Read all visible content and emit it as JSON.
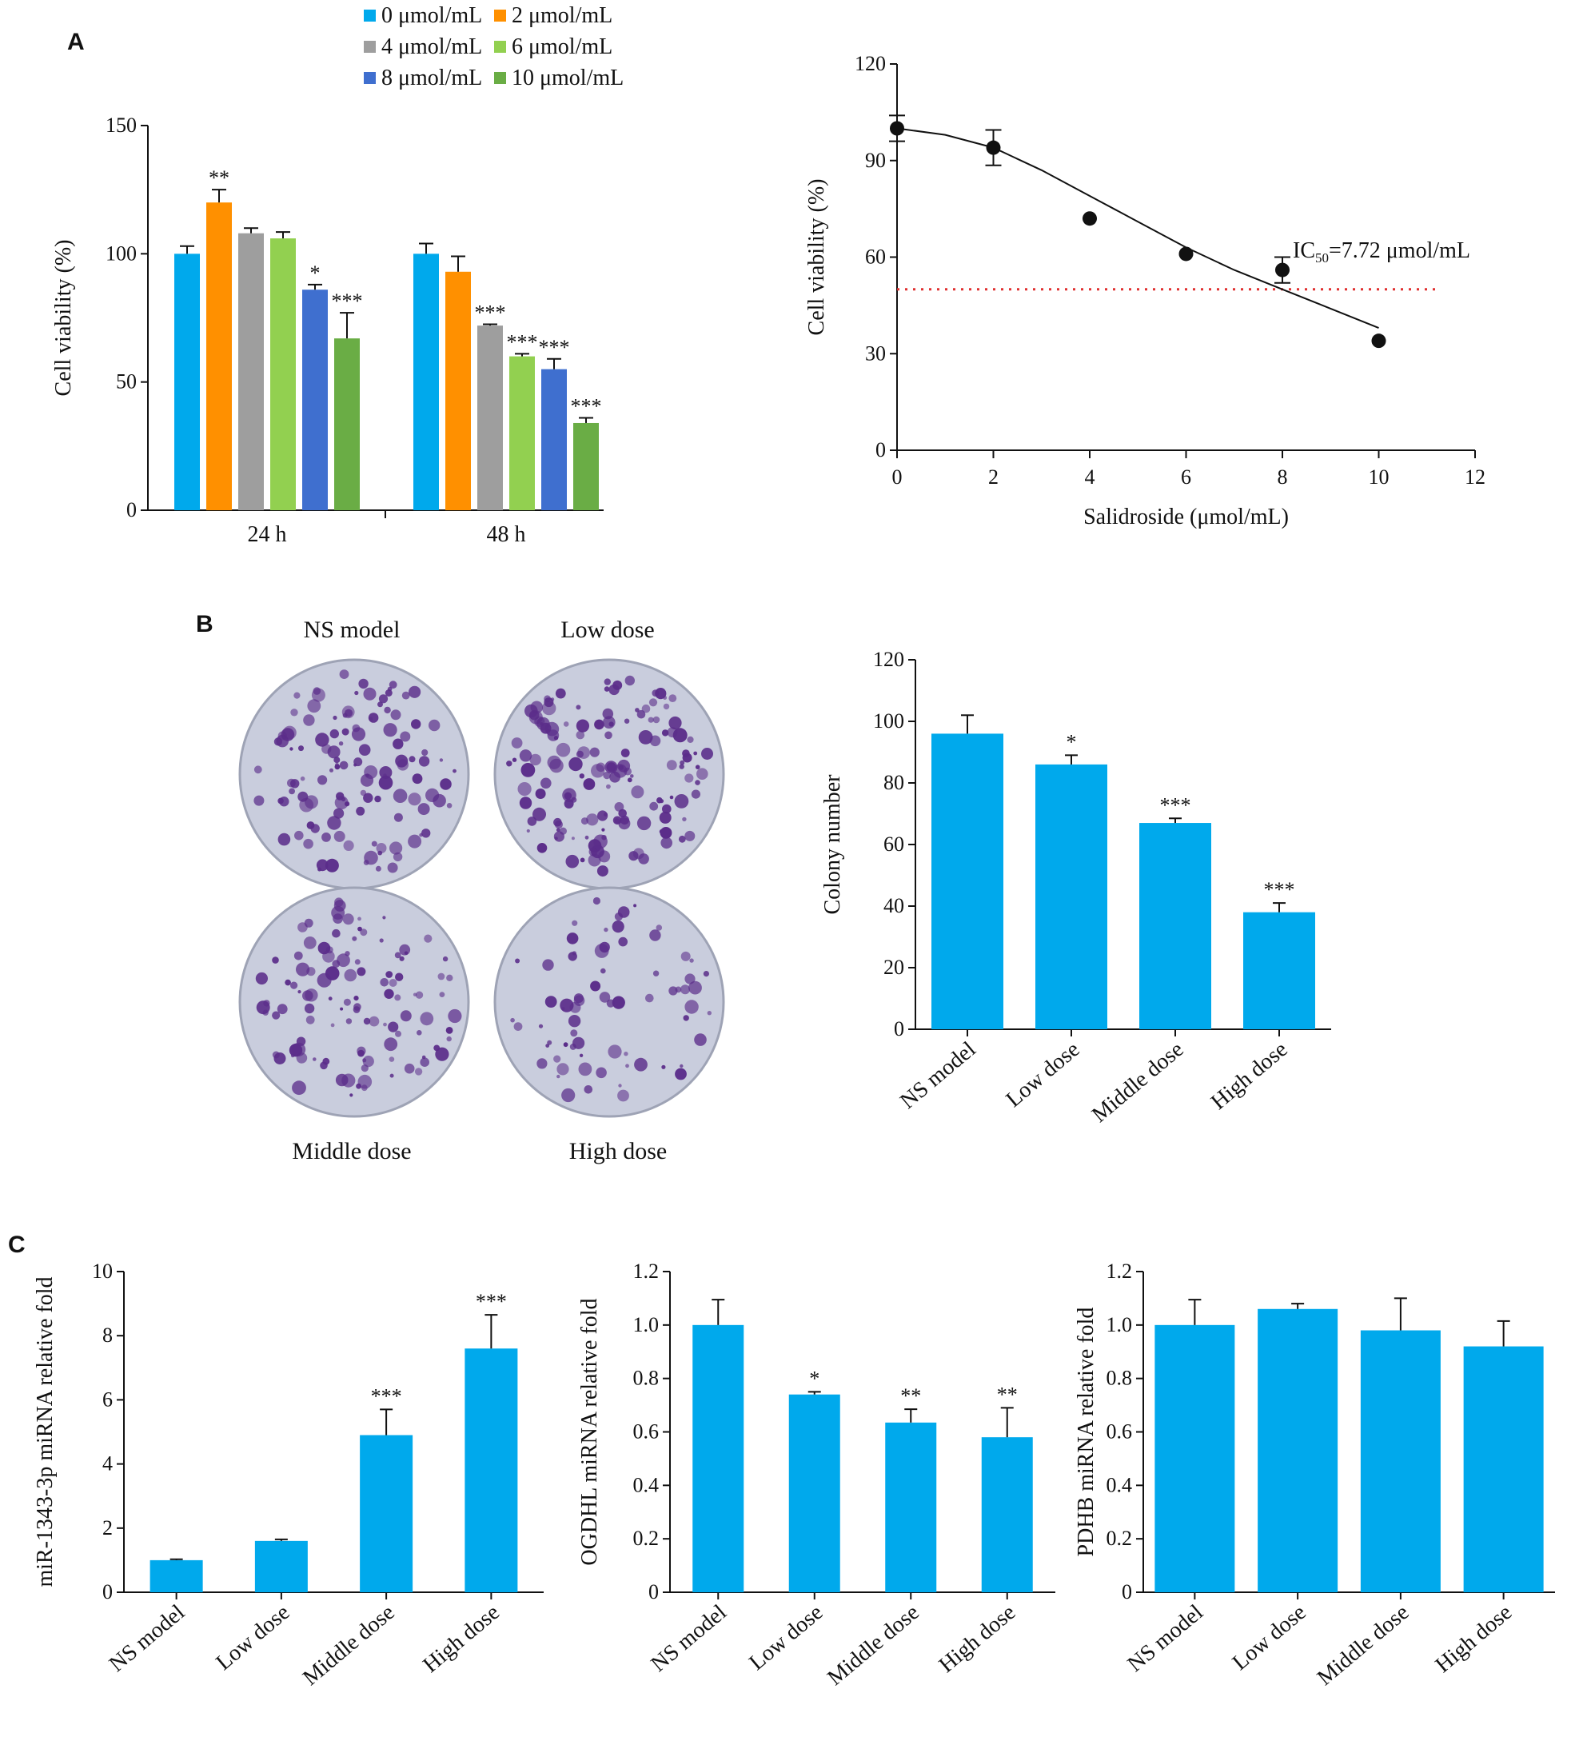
{
  "colors": {
    "blue": "#00A9EC",
    "orange": "#FF9000",
    "gray": "#9E9E9E",
    "light_green": "#92D050",
    "dark_blue": "#3F6FCF",
    "green": "#6AAD45",
    "threshold_line": "#E03030",
    "dish_bg": "#C9CDDD",
    "colony": "#5B2D8A"
  },
  "chart_data": [
    {
      "panel": "A",
      "type": "bar",
      "categories": [
        "24 h",
        "48 h"
      ],
      "ylabel": "Cell viability (%)",
      "ylim": [
        0,
        150
      ],
      "yticks": [
        0,
        50,
        100,
        150
      ],
      "legend": "top",
      "series": [
        {
          "name": "0 μmol/mL",
          "color": "#00A9EC",
          "values": [
            100,
            100
          ],
          "errors": [
            3,
            4
          ],
          "sig": [
            "",
            ""
          ]
        },
        {
          "name": "2 μmol/mL",
          "color": "#FF9000",
          "values": [
            120,
            93
          ],
          "errors": [
            5,
            6
          ],
          "sig": [
            "**",
            ""
          ]
        },
        {
          "name": "4 μmol/mL",
          "color": "#9E9E9E",
          "values": [
            108,
            72
          ],
          "errors": [
            2,
            0.5
          ],
          "sig": [
            "",
            "***"
          ]
        },
        {
          "name": "6 μmol/mL",
          "color": "#92D050",
          "values": [
            106,
            60
          ],
          "errors": [
            2.5,
            1
          ],
          "sig": [
            "",
            "***"
          ]
        },
        {
          "name": "8 μmol/mL",
          "color": "#3F6FCF",
          "values": [
            86,
            55
          ],
          "errors": [
            2,
            4
          ],
          "sig": [
            "*",
            "***"
          ]
        },
        {
          "name": "10 μmol/mL",
          "color": "#6AAD45",
          "values": [
            67,
            34
          ],
          "errors": [
            10,
            2
          ],
          "sig": [
            "***",
            "***"
          ]
        }
      ]
    },
    {
      "panel": "A2",
      "type": "scatter",
      "xlabel": "Salidroside (μmol/mL)",
      "ylabel": "Cell viability (%)",
      "xlim": [
        0,
        12
      ],
      "ylim": [
        0,
        120
      ],
      "xticks": [
        0,
        2,
        4,
        6,
        8,
        10,
        12
      ],
      "yticks": [
        0,
        30,
        60,
        90,
        120
      ],
      "x": [
        0,
        2,
        4,
        6,
        8,
        10
      ],
      "y": [
        100,
        94,
        72,
        61,
        56,
        34
      ],
      "errors": [
        4,
        5.5,
        0,
        0,
        4,
        0
      ],
      "fit_x": [
        0,
        1,
        2,
        3,
        4,
        5,
        6,
        7,
        8,
        9,
        10
      ],
      "fit_y": [
        100,
        98,
        94,
        87,
        79,
        71,
        63,
        56,
        50,
        44,
        38
      ],
      "threshold": 50,
      "annotation": {
        "prefix": "IC",
        "sub": "50",
        "suffix": "=7.72 μmol/mL"
      }
    },
    {
      "panel": "B",
      "type": "bar",
      "categories": [
        "NS model",
        "Low dose",
        "Middle dose",
        "High dose"
      ],
      "ylabel": "Colony number",
      "ylim": [
        0,
        120
      ],
      "yticks": [
        0,
        20,
        40,
        60,
        80,
        100,
        120
      ],
      "values": [
        96,
        86,
        67,
        38
      ],
      "errors": [
        6,
        3,
        1.5,
        3
      ],
      "sig": [
        "",
        "*",
        "***",
        "***"
      ]
    },
    {
      "panel": "C1",
      "type": "bar",
      "categories": [
        "NS model",
        "Low dose",
        "Middle dose",
        "High dose"
      ],
      "ylabel": "miR-1343-3p miRNA relative fold",
      "ylim": [
        0,
        10
      ],
      "yticks": [
        0,
        2,
        4,
        6,
        8,
        10
      ],
      "values": [
        1.0,
        1.6,
        4.9,
        7.6
      ],
      "errors": [
        0.03,
        0.05,
        0.8,
        1.05
      ],
      "sig": [
        "",
        "",
        "***",
        "***"
      ]
    },
    {
      "panel": "C2",
      "type": "bar",
      "categories": [
        "NS model",
        "Low dose",
        "Middle dose",
        "High dose"
      ],
      "ylabel": "OGDHL miRNA relative fold",
      "ylim": [
        0,
        1.2
      ],
      "yticks": [
        0,
        0.2,
        0.4,
        0.6,
        0.8,
        1.0,
        1.2
      ],
      "values": [
        1.0,
        0.74,
        0.635,
        0.58
      ],
      "errors": [
        0.095,
        0.01,
        0.05,
        0.11
      ],
      "sig": [
        "",
        "*",
        "**",
        "**"
      ]
    },
    {
      "panel": "C3",
      "type": "bar",
      "categories": [
        "NS model",
        "Low dose",
        "Middle dose",
        "High dose"
      ],
      "ylabel": "PDHB miRNA relative fold",
      "ylim": [
        0,
        1.2
      ],
      "yticks": [
        0,
        0.2,
        0.4,
        0.6,
        0.8,
        1.0,
        1.2
      ],
      "values": [
        1.0,
        1.06,
        0.98,
        0.92
      ],
      "errors": [
        0.095,
        0.02,
        0.12,
        0.095
      ],
      "sig": [
        "",
        "",
        "",
        ""
      ]
    }
  ],
  "panel_labels": {
    "a": "A",
    "b": "B",
    "c": "C"
  },
  "dish_images": [
    {
      "label": "NS model",
      "seed": 11,
      "count": 120
    },
    {
      "label": "Low dose",
      "seed": 29,
      "count": 150
    },
    {
      "label": "Middle dose",
      "seed": 47,
      "count": 110
    },
    {
      "label": "High dose",
      "seed": 83,
      "count": 70
    }
  ]
}
